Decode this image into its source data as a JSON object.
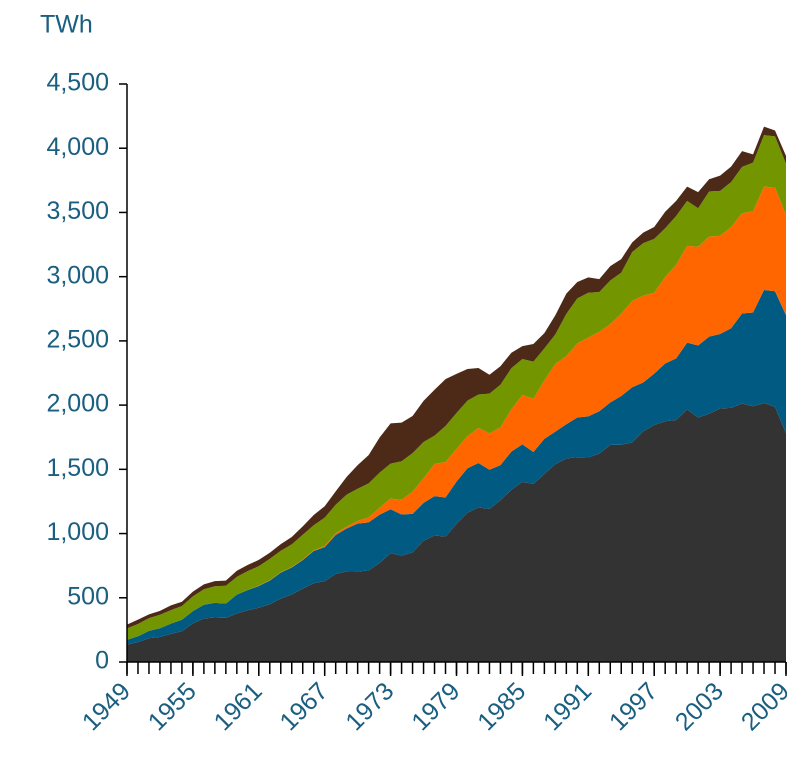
{
  "chart_data": {
    "type": "stacked_area",
    "y_label": "TWh",
    "x": [
      1949,
      1950,
      1951,
      1952,
      1953,
      1954,
      1955,
      1956,
      1957,
      1958,
      1959,
      1960,
      1961,
      1962,
      1963,
      1964,
      1965,
      1966,
      1967,
      1968,
      1969,
      1970,
      1971,
      1972,
      1973,
      1974,
      1975,
      1976,
      1977,
      1978,
      1979,
      1980,
      1981,
      1982,
      1983,
      1984,
      1985,
      1986,
      1987,
      1988,
      1989,
      1990,
      1991,
      1992,
      1993,
      1994,
      1995,
      1996,
      1997,
      1998,
      1999,
      2000,
      2001,
      2002,
      2003,
      2004,
      2005,
      2006,
      2007,
      2008,
      2009
    ],
    "xlim": [
      1949,
      2009
    ],
    "xticks": [
      1949,
      1955,
      1961,
      1967,
      1973,
      1979,
      1985,
      1991,
      1997,
      2003,
      2009
    ],
    "ylim": [
      0,
      4500
    ],
    "yticks": [
      0,
      500,
      {
        "value": 1000,
        "label": "1,000"
      },
      {
        "value": 1500,
        "label": "1,500"
      },
      {
        "value": 2000,
        "label": "2,000"
      },
      {
        "value": 2500,
        "label": "2,500"
      },
      {
        "value": 3000,
        "label": "3,000"
      },
      {
        "value": 3500,
        "label": "3,500"
      },
      {
        "value": 4000,
        "label": "4,000"
      },
      {
        "value": 4500,
        "label": "4,500"
      }
    ],
    "series": [
      {
        "color": "#333333",
        "values": [
          135,
          155,
          185,
          195,
          219,
          239,
          301,
          339,
          346,
          344,
          378,
          403,
          422,
          450,
          494,
          526,
          571,
          613,
          630,
          685,
          706,
          704,
          713,
          771,
          848,
          828,
          853,
          944,
          985,
          976,
          1075,
          1162,
          1203,
          1192,
          1259,
          1342,
          1402,
          1386,
          1464,
          1541,
          1584,
          1594,
          1592,
          1622,
          1690,
          1691,
          1709,
          1796,
          1845,
          1874,
          1884,
          1966,
          1904,
          1933,
          1974,
          1978,
          2013,
          1991,
          2016,
          1986,
          1780
        ]
      },
      {
        "color": "#005a82",
        "values": [
          37,
          45,
          57,
          68,
          80,
          90,
          95,
          107,
          114,
          110,
          147,
          158,
          170,
          184,
          202,
          210,
          222,
          251,
          264,
          304,
          333,
          373,
          374,
          376,
          341,
          320,
          300,
          295,
          306,
          305,
          329,
          346,
          346,
          305,
          274,
          297,
          292,
          249,
          273,
          253,
          267,
          310,
          320,
          330,
          330,
          380,
          430,
          380,
          400,
          450,
          480,
          520,
          560,
          600,
          580,
          620,
          700,
          730,
          880,
          900,
          920
        ]
      },
      {
        "color": "#ff6600",
        "values": [
          0,
          0,
          0,
          0,
          0,
          0,
          0,
          0,
          0,
          0,
          0,
          1,
          2,
          2,
          3,
          3,
          4,
          6,
          8,
          13,
          14,
          22,
          38,
          54,
          83,
          114,
          173,
          191,
          251,
          276,
          255,
          251,
          273,
          283,
          294,
          328,
          384,
          414,
          455,
          527,
          529,
          577,
          613,
          619,
          610,
          640,
          673,
          675,
          629,
          673,
          728,
          754,
          769,
          780,
          764,
          788,
          782,
          787,
          806,
          806,
          780
        ]
      },
      {
        "color": "#739600",
        "values": [
          90,
          96,
          100,
          105,
          105,
          107,
          115,
          120,
          130,
          140,
          138,
          146,
          152,
          167,
          167,
          177,
          194,
          195,
          222,
          222,
          250,
          250,
          266,
          273,
          272,
          301,
          300,
          283,
          220,
          280,
          280,
          276,
          261,
          309,
          332,
          321,
          281,
          290,
          250,
          230,
          330,
          350,
          350,
          310,
          340,
          320,
          380,
          410,
          420,
          380,
          380,
          350,
          300,
          350,
          350,
          350,
          360,
          380,
          400,
          400,
          400
        ]
      },
      {
        "color": "#4d2a17",
        "values": [
          29,
          34,
          29,
          30,
          37,
          33,
          37,
          38,
          40,
          40,
          47,
          48,
          49,
          48,
          52,
          57,
          65,
          79,
          89,
          104,
          138,
          184,
          220,
          274,
          314,
          301,
          289,
          320,
          358,
          365,
          304,
          246,
          206,
          147,
          144,
          120,
          100,
          137,
          118,
          149,
          158,
          127,
          119,
          100,
          112,
          106,
          75,
          82,
          93,
          128,
          118,
          111,
          125,
          95,
          119,
          121,
          122,
          64,
          66,
          46,
          60
        ]
      }
    ]
  }
}
